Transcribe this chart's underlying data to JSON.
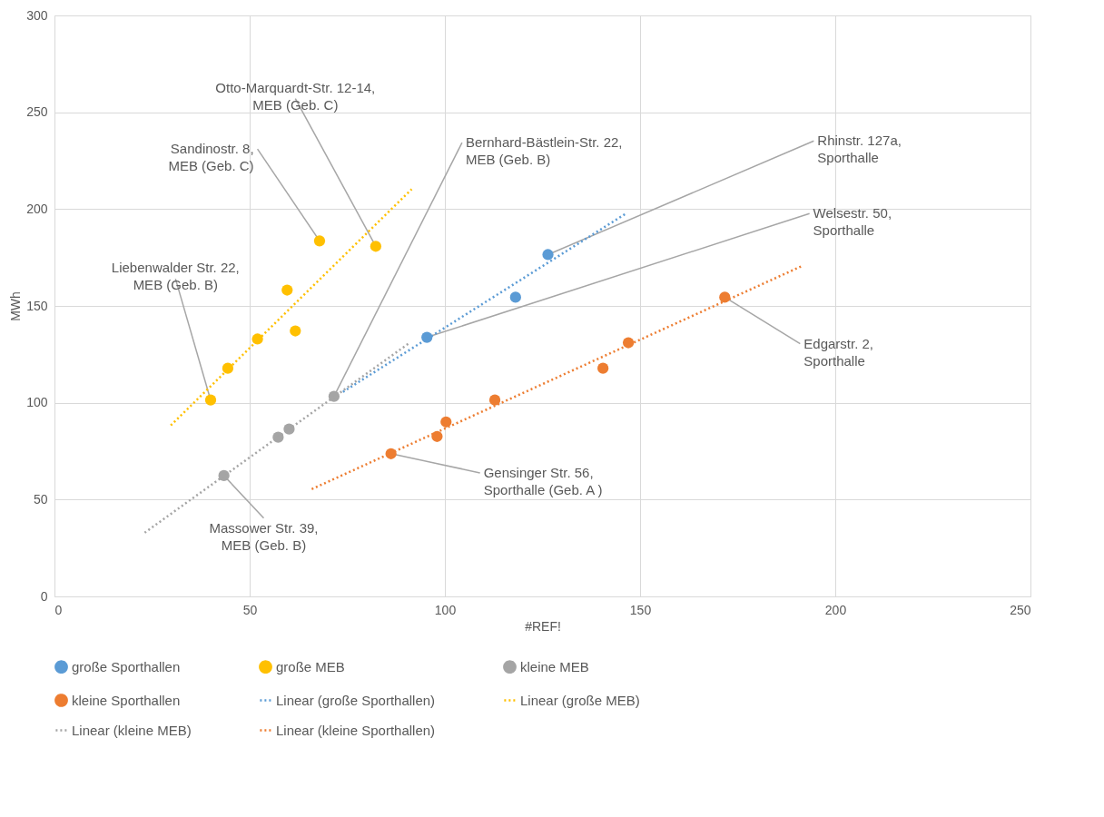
{
  "chart_data": {
    "type": "scatter",
    "xlabel": "#REF!",
    "ylabel": "MWh",
    "xlim": [
      0,
      250
    ],
    "xticks": [
      0,
      50,
      100,
      150,
      200,
      250
    ],
    "ylim": [
      0,
      300
    ],
    "yticks": [
      0,
      50,
      100,
      150,
      200,
      250,
      300
    ],
    "grid": true,
    "legend": "bottom",
    "marker": "circle",
    "series": [
      {
        "name": "große Sporthallen",
        "type": "scatter",
        "color": "#5b9bd5",
        "x": [
          95.4,
          118.1,
          126.4
        ],
        "values": [
          133.8,
          154.5,
          176.5
        ]
      },
      {
        "name": "große MEB",
        "type": "scatter",
        "color": "#ffc000",
        "x": [
          40.0,
          44.4,
          52.0,
          59.6,
          61.7,
          67.9,
          82.3
        ],
        "values": [
          101.4,
          117.8,
          132.9,
          158.2,
          137.1,
          183.6,
          180.8
        ]
      },
      {
        "name": "kleine MEB",
        "type": "scatter",
        "color": "#a5a5a5",
        "x": [
          43.4,
          57.3,
          60.1,
          71.6
        ],
        "values": [
          62.4,
          82.2,
          86.4,
          103.3
        ]
      },
      {
        "name": "kleine Sporthallen",
        "type": "scatter",
        "color": "#ed7d31",
        "x": [
          86.2,
          98.0,
          100.3,
          112.8,
          140.5,
          147.0,
          171.7
        ],
        "values": [
          73.7,
          82.6,
          90.1,
          101.4,
          117.8,
          131.0,
          154.5
        ]
      },
      {
        "name": "Linear (große Sporthallen)",
        "type": "line",
        "marker": "none",
        "line_style": "dotted",
        "color": "#5b9bd5",
        "x": [
          73.9,
          146.7
        ],
        "values": [
          105.6,
          198.1
        ]
      },
      {
        "name": "Linear (große MEB)",
        "type": "line",
        "marker": "none",
        "line_style": "dotted",
        "color": "#ffc000",
        "x": [
          29.8,
          91.5
        ],
        "values": [
          88.3,
          210.3
        ]
      },
      {
        "name": "Linear (kleine MEB)",
        "type": "line",
        "marker": "none",
        "line_style": "dotted",
        "color": "#a5a5a5",
        "x": [
          23.1,
          91.0
        ],
        "values": [
          32.9,
          131.0
        ]
      },
      {
        "name": "Linear (kleine Sporthallen)",
        "type": "line",
        "marker": "none",
        "line_style": "dotted",
        "color": "#ed7d31",
        "x": [
          65.9,
          191.8
        ],
        "values": [
          55.4,
          170.9
        ]
      }
    ],
    "annotations": [
      {
        "text": "Otto-Marquardt-Str. 12-14,\nMEB (Geb. C)",
        "x": 82.3,
        "y": 180.8
      },
      {
        "text": "Sandinostr. 8,\nMEB (Geb. C)",
        "x": 67.9,
        "y": 183.6
      },
      {
        "text": "Bernhard-Bästlein-Str. 22,\nMEB (Geb. B)",
        "x": 71.6,
        "y": 103.3
      },
      {
        "text": "Rhinstr. 127a,\nSporthalle",
        "x": 126.4,
        "y": 176.5
      },
      {
        "text": "Welsestr. 50,\nSporthalle",
        "x": 95.4,
        "y": 133.8
      },
      {
        "text": "Liebenwalder Str. 22,\nMEB (Geb. B)",
        "x": 40.0,
        "y": 101.4
      },
      {
        "text": "Edgarstr. 2,\nSporthalle",
        "x": 171.7,
        "y": 154.5
      },
      {
        "text": "Gensinger Str. 56,\nSporthalle (Geb. A )",
        "x": 86.2,
        "y": 73.7
      },
      {
        "text": "Massower Str. 39,\nMEB (Geb. B)",
        "x": 43.4,
        "y": 62.4
      }
    ]
  }
}
